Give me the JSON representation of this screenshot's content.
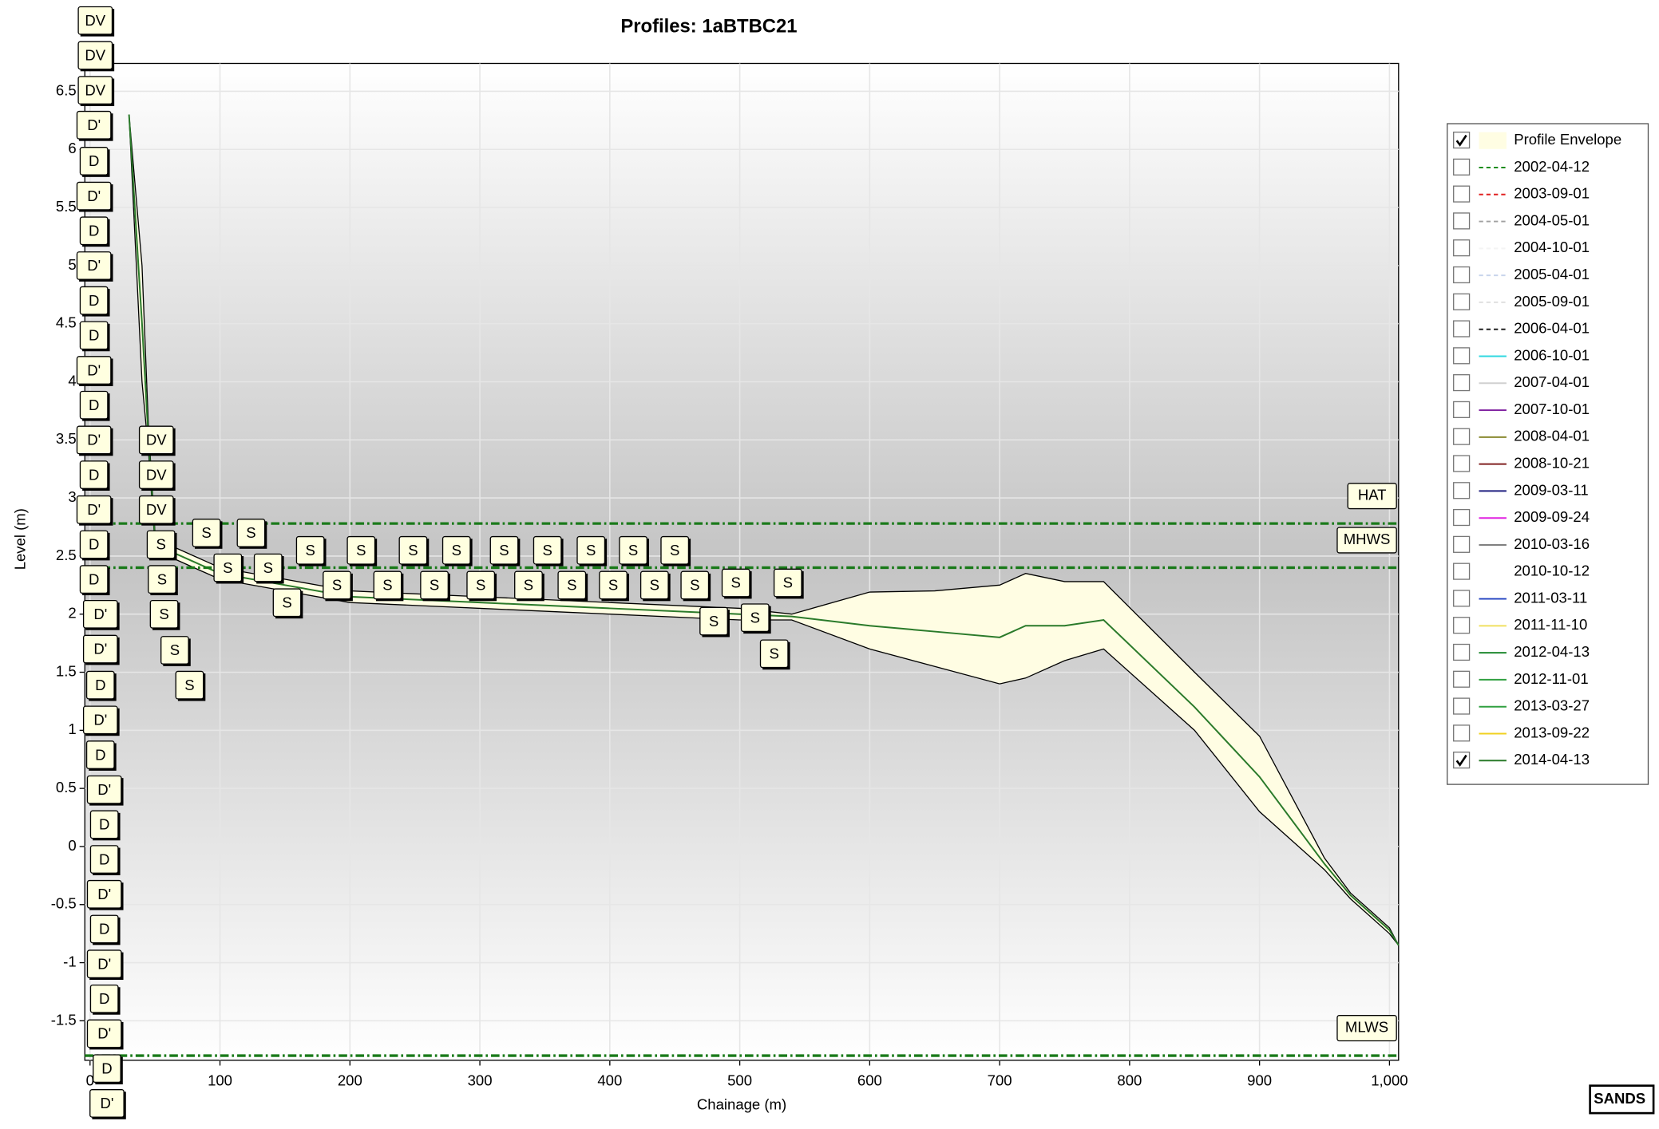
{
  "chart_data": {
    "type": "area",
    "title": "Profiles: 1aBTBC21",
    "x_label": "Chainage (m)",
    "y_label": "Level (m)",
    "logo": "SANDS",
    "xlim": [
      -4,
      1007
    ],
    "ylim": [
      -1.84,
      6.74
    ],
    "xticks": [
      0,
      100,
      200,
      300,
      400,
      500,
      600,
      700,
      800,
      900,
      {
        "value": 1000,
        "label": "1,000"
      }
    ],
    "yticks": [
      -1.5,
      -1,
      -0.5,
      0,
      0.5,
      1,
      1.5,
      2,
      2.5,
      3,
      3.5,
      4,
      4.5,
      5,
      5.5,
      6,
      6.5
    ],
    "grid": true,
    "x": [
      30,
      40,
      45,
      50,
      60,
      80,
      100,
      150,
      200,
      300,
      400,
      500,
      540,
      600,
      650,
      700,
      720,
      750,
      780,
      850,
      900,
      950,
      970,
      1000,
      1007
    ],
    "series": [
      {
        "name": "Profile Envelope",
        "color": "#fffde3",
        "checked": true,
        "values": [
          6.3,
          5.0,
          3.6,
          2.7,
          2.6,
          2.5,
          2.4,
          2.3,
          2.2,
          2.15,
          2.1,
          2.05,
          2.0,
          2.19,
          2.2,
          2.25,
          2.35,
          2.28,
          2.28,
          1.5,
          0.95,
          -0.1,
          -0.4,
          -0.7,
          -0.85
        ],
        "lower": [
          6.3,
          4.0,
          3.4,
          2.6,
          2.5,
          2.4,
          2.3,
          2.2,
          2.1,
          2.05,
          2.0,
          1.95,
          1.95,
          1.7,
          1.55,
          1.4,
          1.45,
          1.6,
          1.7,
          1.0,
          0.3,
          -0.2,
          -0.45,
          -0.75,
          -0.85
        ]
      },
      {
        "name": "2002-04-12",
        "color": "#1a8c1a",
        "dash": true,
        "checked": false
      },
      {
        "name": "2003-09-01",
        "color": "#e02020",
        "dash": true,
        "checked": false
      },
      {
        "name": "2004-05-01",
        "color": "#a0a0a0",
        "dash": true,
        "checked": false
      },
      {
        "name": "2004-10-01",
        "color": "#f4f4f4",
        "dash": true,
        "checked": false
      },
      {
        "name": "2005-04-01",
        "color": "#c8d4ec",
        "dash": true,
        "checked": false
      },
      {
        "name": "2005-09-01",
        "color": "#e0e0e0",
        "dash": true,
        "checked": false
      },
      {
        "name": "2006-04-01",
        "color": "#202020",
        "dash": true,
        "checked": false
      },
      {
        "name": "2006-10-01",
        "color": "#30d8e0",
        "checked": false
      },
      {
        "name": "2007-04-01",
        "color": "#d0d0d0",
        "checked": false
      },
      {
        "name": "2007-10-01",
        "color": "#8020a0",
        "checked": false
      },
      {
        "name": "2008-04-01",
        "color": "#8a8a30",
        "checked": false
      },
      {
        "name": "2008-10-21",
        "color": "#802020",
        "checked": false
      },
      {
        "name": "2009-03-11",
        "color": "#202080",
        "checked": false
      },
      {
        "name": "2009-09-24",
        "color": "#e020e0",
        "checked": false
      },
      {
        "name": "2010-03-16",
        "color": "#808080",
        "checked": false
      },
      {
        "name": "2010-10-12",
        "color": "#ffffff",
        "checked": false
      },
      {
        "name": "2011-03-11",
        "color": "#2040c0",
        "checked": false
      },
      {
        "name": "2011-11-10",
        "color": "#f0e060",
        "checked": false
      },
      {
        "name": "2012-04-13",
        "color": "#208a30",
        "checked": false
      },
      {
        "name": "2012-11-01",
        "color": "#30a040",
        "checked": false
      },
      {
        "name": "2013-03-27",
        "color": "#30a040",
        "checked": false
      },
      {
        "name": "2013-09-22",
        "color": "#f0d020",
        "checked": false
      },
      {
        "name": "2014-04-13",
        "color": "#2a7a2a",
        "checked": true,
        "values": [
          6.3,
          4.5,
          3.5,
          2.65,
          2.55,
          2.45,
          2.35,
          2.25,
          2.15,
          2.1,
          2.05,
          2.0,
          1.98,
          1.9,
          1.85,
          1.8,
          1.9,
          1.9,
          1.95,
          1.2,
          0.6,
          -0.15,
          -0.42,
          -0.72,
          -0.85
        ]
      }
    ],
    "levels": {
      "color": "#1a7a1a",
      "items": [
        {
          "label": "HAT",
          "value": 2.78
        },
        {
          "label": "MHWS",
          "value": 2.4
        },
        {
          "label": "MLWS",
          "value": -1.8
        }
      ]
    },
    "point_labels": [
      {
        "label": "DV",
        "x": 4,
        "y": 7.1
      },
      {
        "label": "DV",
        "x": 4,
        "y": 6.8
      },
      {
        "label": "DV",
        "x": 4,
        "y": 6.5
      },
      {
        "label": "DV",
        "x": 51,
        "y": 3.49
      },
      {
        "label": "DV",
        "x": 51,
        "y": 3.19
      },
      {
        "label": "DV",
        "x": 51,
        "y": 2.89
      },
      {
        "label": "D'",
        "x": 3,
        "y": 6.2
      },
      {
        "label": "D",
        "x": 3,
        "y": 5.89
      },
      {
        "label": "D'",
        "x": 3,
        "y": 5.59
      },
      {
        "label": "D",
        "x": 3,
        "y": 5.29
      },
      {
        "label": "D'",
        "x": 3,
        "y": 4.99
      },
      {
        "label": "D",
        "x": 3,
        "y": 4.69
      },
      {
        "label": "D",
        "x": 3,
        "y": 4.39
      },
      {
        "label": "D'",
        "x": 3,
        "y": 4.09
      },
      {
        "label": "D",
        "x": 3,
        "y": 3.79
      },
      {
        "label": "D'",
        "x": 3,
        "y": 3.49
      },
      {
        "label": "D",
        "x": 3,
        "y": 3.19
      },
      {
        "label": "D'",
        "x": 3,
        "y": 2.89
      },
      {
        "label": "D",
        "x": 3,
        "y": 2.59
      },
      {
        "label": "D",
        "x": 3,
        "y": 2.29
      },
      {
        "label": "D'",
        "x": 8,
        "y": 1.99
      },
      {
        "label": "D'",
        "x": 8,
        "y": 1.69
      },
      {
        "label": "D",
        "x": 8,
        "y": 1.38
      },
      {
        "label": "D'",
        "x": 8,
        "y": 1.08
      },
      {
        "label": "D",
        "x": 8,
        "y": 0.78
      },
      {
        "label": "D'",
        "x": 11,
        "y": 0.48
      },
      {
        "label": "D",
        "x": 11,
        "y": 0.18
      },
      {
        "label": "D",
        "x": 11,
        "y": -0.12
      },
      {
        "label": "D'",
        "x": 11,
        "y": -0.42
      },
      {
        "label": "D",
        "x": 11,
        "y": -0.72
      },
      {
        "label": "D'",
        "x": 11,
        "y": -1.02
      },
      {
        "label": "D",
        "x": 11,
        "y": -1.32
      },
      {
        "label": "D'",
        "x": 11,
        "y": -1.62
      },
      {
        "label": "D",
        "x": 13,
        "y": -1.92
      },
      {
        "label": "D'",
        "x": 13,
        "y": -2.22
      },
      {
        "label": "S",
        "x": 89.6,
        "y": 2.69
      },
      {
        "label": "S",
        "x": 123.9,
        "y": 2.69
      },
      {
        "label": "S",
        "x": 54.6,
        "y": 2.59
      },
      {
        "label": "S",
        "x": 169.5,
        "y": 2.54
      },
      {
        "label": "S",
        "x": 208.6,
        "y": 2.54
      },
      {
        "label": "S",
        "x": 248.6,
        "y": 2.54
      },
      {
        "label": "S",
        "x": 282,
        "y": 2.54
      },
      {
        "label": "S",
        "x": 318.7,
        "y": 2.54
      },
      {
        "label": "S",
        "x": 352,
        "y": 2.54
      },
      {
        "label": "S",
        "x": 385.5,
        "y": 2.54
      },
      {
        "label": "S",
        "x": 418,
        "y": 2.54
      },
      {
        "label": "S",
        "x": 450,
        "y": 2.54
      },
      {
        "label": "S",
        "x": 106,
        "y": 2.39
      },
      {
        "label": "S",
        "x": 137,
        "y": 2.39
      },
      {
        "label": "S",
        "x": 55.4,
        "y": 2.29
      },
      {
        "label": "S",
        "x": 190,
        "y": 2.24
      },
      {
        "label": "S",
        "x": 229,
        "y": 2.24
      },
      {
        "label": "S",
        "x": 265,
        "y": 2.24
      },
      {
        "label": "S",
        "x": 300.7,
        "y": 2.24
      },
      {
        "label": "S",
        "x": 337.4,
        "y": 2.24
      },
      {
        "label": "S",
        "x": 370.8,
        "y": 2.24
      },
      {
        "label": "S",
        "x": 402.6,
        "y": 2.24
      },
      {
        "label": "S",
        "x": 434.4,
        "y": 2.24
      },
      {
        "label": "S",
        "x": 465.4,
        "y": 2.24
      },
      {
        "label": "S",
        "x": 497,
        "y": 2.26
      },
      {
        "label": "S",
        "x": 537,
        "y": 2.26
      },
      {
        "label": "S",
        "x": 57,
        "y": 1.99
      },
      {
        "label": "S",
        "x": 151.6,
        "y": 2.09
      },
      {
        "label": "S",
        "x": 480,
        "y": 1.93
      },
      {
        "label": "S",
        "x": 511.8,
        "y": 1.96
      },
      {
        "label": "S",
        "x": 65.2,
        "y": 1.68
      },
      {
        "label": "S",
        "x": 526.5,
        "y": 1.65
      },
      {
        "label": "S",
        "x": 76.6,
        "y": 1.38
      }
    ]
  }
}
